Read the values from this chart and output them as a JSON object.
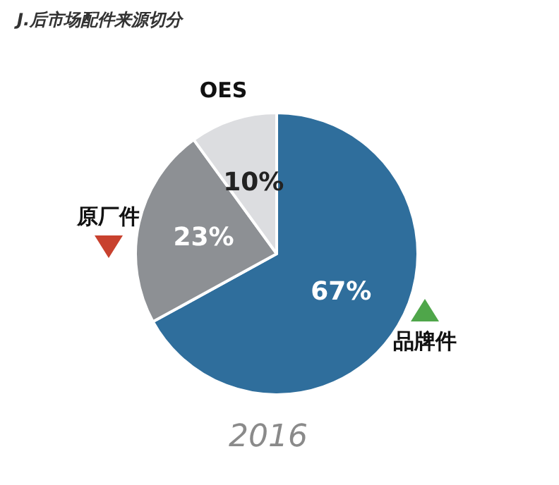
{
  "chart_data": {
    "type": "pie",
    "title": "J.后市场配件来源切分",
    "categories": [
      "品牌件",
      "原厂件",
      "OES"
    ],
    "values": [
      67,
      23,
      10
    ],
    "value_labels": [
      "67%",
      "23%",
      "10%"
    ],
    "colors": [
      "#2f6e9c",
      "#8d9094",
      "#dcdde0"
    ],
    "annotations": [
      "2016"
    ],
    "legend": false
  }
}
